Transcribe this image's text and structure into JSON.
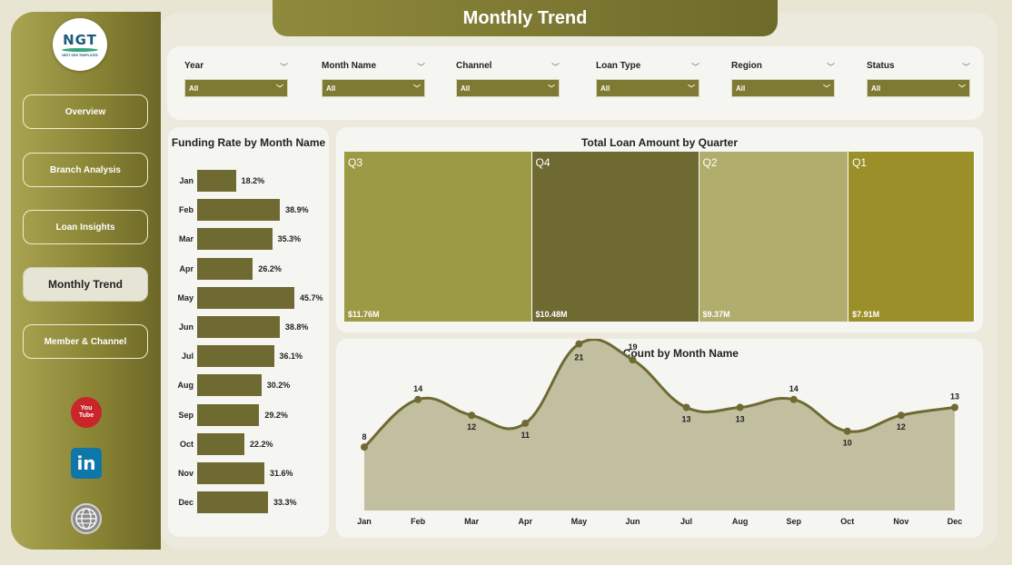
{
  "app": {
    "title": "Monthly Trend"
  },
  "logo": {
    "name": "NGT",
    "tagline": "NEXT GEN TEMPLATES"
  },
  "nav": {
    "items": [
      {
        "label": "Overview"
      },
      {
        "label": "Branch Analysis"
      },
      {
        "label": "Loan Insights"
      },
      {
        "label": "Monthly Trend",
        "active": true
      },
      {
        "label": "Member & Channel"
      }
    ]
  },
  "social": {
    "youtube_top": "You",
    "youtube_bottom": "Tube",
    "linkedin": "in",
    "web": "www"
  },
  "filters": [
    {
      "label": "Year",
      "value": "All"
    },
    {
      "label": "Month Name",
      "value": "All"
    },
    {
      "label": "Channel",
      "value": "All"
    },
    {
      "label": "Loan Type",
      "value": "All"
    },
    {
      "label": "Region",
      "value": "All"
    },
    {
      "label": "Status",
      "value": "All"
    }
  ],
  "colors": {
    "accent_dark": "#6e6a32",
    "accent": "#8f8a3c",
    "area_fill": "#c2bfa0"
  },
  "chart_data": [
    {
      "type": "bar",
      "orientation": "horizontal",
      "title": "Funding Rate by Month Name",
      "categories": [
        "Jan",
        "Feb",
        "Mar",
        "Apr",
        "May",
        "Jun",
        "Jul",
        "Aug",
        "Sep",
        "Oct",
        "Nov",
        "Dec"
      ],
      "values": [
        18.2,
        38.9,
        35.3,
        26.2,
        45.7,
        38.8,
        36.1,
        30.2,
        29.2,
        22.2,
        31.6,
        33.3
      ],
      "labels": [
        "18.2%",
        "38.9%",
        "35.3%",
        "26.2%",
        "45.7%",
        "38.8%",
        "36.1%",
        "30.2%",
        "29.2%",
        "22.2%",
        "31.6%",
        "33.3%"
      ]
    },
    {
      "type": "treemap",
      "title": "Total Loan Amount by Quarter",
      "categories": [
        "Q3",
        "Q4",
        "Q2",
        "Q1"
      ],
      "values": [
        11.76,
        10.48,
        9.37,
        7.91
      ],
      "labels": [
        "$11.76M",
        "$10.48M",
        "$9.37M",
        "$7.91M"
      ],
      "colors": [
        "#9d9a46",
        "#6e6a32",
        "#b1ad6c",
        "#9a8f28"
      ]
    },
    {
      "type": "area",
      "title": "Funded Count by Month Name",
      "categories": [
        "Jan",
        "Feb",
        "Mar",
        "Apr",
        "May",
        "Jun",
        "Jul",
        "Aug",
        "Sep",
        "Oct",
        "Nov",
        "Dec"
      ],
      "values": [
        8,
        14,
        12,
        11,
        21,
        19,
        13,
        13,
        14,
        10,
        12,
        13
      ]
    }
  ]
}
